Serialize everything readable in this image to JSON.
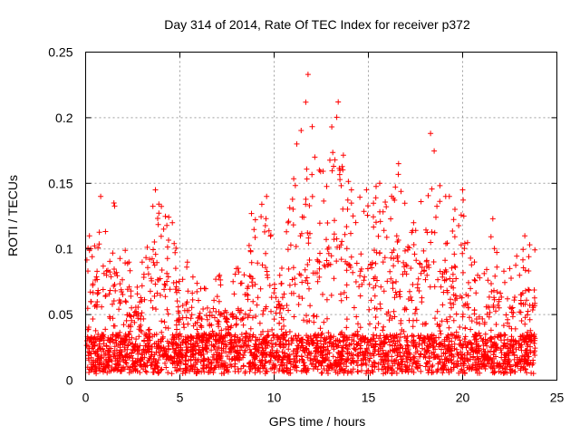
{
  "chart_data": {
    "type": "scatter",
    "title": "Day 314 of 2014, Rate Of TEC Index for receiver p372",
    "xlabel": "GPS time / hours",
    "ylabel": "ROTI / TECUs",
    "xlim": [
      0,
      25
    ],
    "ylim": [
      0,
      0.25
    ],
    "xticks": [
      "0",
      "5",
      "10",
      "15",
      "20",
      "25"
    ],
    "yticks": [
      "0",
      "0.05",
      "0.1",
      "0.15",
      "0.2",
      "0.25"
    ],
    "grid": true,
    "marker": "plus",
    "color": "#ff0000",
    "series": [
      {
        "values_summary_hourly_peak": [
          {
            "hour": 0.2,
            "roti": 0.11
          },
          {
            "hour": 0.8,
            "roti": 0.14
          },
          {
            "hour": 1.5,
            "roti": 0.135
          },
          {
            "hour": 2.3,
            "roti": 0.09
          },
          {
            "hour": 3.0,
            "roti": 0.09
          },
          {
            "hour": 3.7,
            "roti": 0.145
          },
          {
            "hour": 4.6,
            "roti": 0.12
          },
          {
            "hour": 5.4,
            "roti": 0.09
          },
          {
            "hour": 6.3,
            "roti": 0.07
          },
          {
            "hour": 7.1,
            "roti": 0.08
          },
          {
            "hour": 8.0,
            "roti": 0.085
          },
          {
            "hour": 8.8,
            "roti": 0.127
          },
          {
            "hour": 9.6,
            "roti": 0.14
          },
          {
            "hour": 10.3,
            "roti": 0.08
          },
          {
            "hour": 11.2,
            "roti": 0.18
          },
          {
            "hour": 11.8,
            "roti": 0.233
          },
          {
            "hour": 12.4,
            "roti": 0.16
          },
          {
            "hour": 13.4,
            "roti": 0.212
          },
          {
            "hour": 14.1,
            "roti": 0.145
          },
          {
            "hour": 14.9,
            "roti": 0.145
          },
          {
            "hour": 15.6,
            "roti": 0.15
          },
          {
            "hour": 16.6,
            "roti": 0.165
          },
          {
            "hour": 17.4,
            "roti": 0.12
          },
          {
            "hour": 18.3,
            "roti": 0.188
          },
          {
            "hour": 19.1,
            "roti": 0.14
          },
          {
            "hour": 20.0,
            "roti": 0.145
          },
          {
            "hour": 20.8,
            "roti": 0.08
          },
          {
            "hour": 21.6,
            "roti": 0.123
          },
          {
            "hour": 22.5,
            "roti": 0.085
          },
          {
            "hour": 23.3,
            "roti": 0.11
          }
        ]
      }
    ]
  }
}
